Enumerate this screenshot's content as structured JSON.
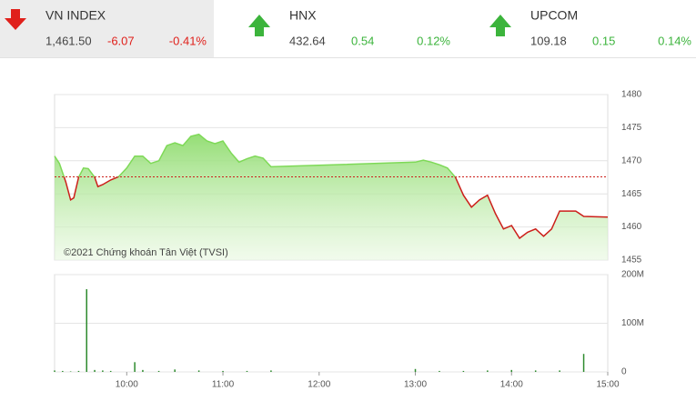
{
  "header": {
    "indices": [
      {
        "name": "VN INDEX",
        "value": "1,461.50",
        "change": "-6.07",
        "percent": "-0.41%",
        "direction": "down"
      },
      {
        "name": "HNX",
        "value": "432.64",
        "change": "0.54",
        "percent": "0.12%",
        "direction": "up"
      },
      {
        "name": "UPCOM",
        "value": "109.18",
        "change": "0.15",
        "percent": "0.14%",
        "direction": "up"
      }
    ]
  },
  "chart_data": [
    {
      "type": "line",
      "annotation": "©2021 Chứng khoán Tân Việt (TVSI)",
      "x": [
        "09:15",
        "09:18",
        "09:22",
        "09:25",
        "09:27",
        "09:30",
        "09:33",
        "09:36",
        "09:40",
        "09:42",
        "09:45",
        "09:50",
        "09:55",
        "10:00",
        "10:05",
        "10:10",
        "10:15",
        "10:20",
        "10:25",
        "10:30",
        "10:35",
        "10:40",
        "10:45",
        "10:50",
        "10:55",
        "11:00",
        "11:05",
        "11:10",
        "11:15",
        "11:20",
        "11:25",
        "11:30",
        "13:00",
        "13:05",
        "13:10",
        "13:15",
        "13:20",
        "13:25",
        "13:30",
        "13:35",
        "13:40",
        "13:45",
        "13:50",
        "13:55",
        "14:00",
        "14:05",
        "14:10",
        "14:15",
        "14:20",
        "14:25",
        "14:30",
        "14:35",
        "14:40",
        "14:45",
        "15:00"
      ],
      "series": [
        {
          "name": "VN INDEX",
          "values": [
            1470.7,
            1469.6,
            1466.8,
            1464.1,
            1464.4,
            1467.5,
            1468.9,
            1468.8,
            1467.5,
            1466.1,
            1466.4,
            1467.1,
            1467.6,
            1468.9,
            1470.7,
            1470.7,
            1469.6,
            1470.0,
            1472.3,
            1472.7,
            1472.3,
            1473.7,
            1474.0,
            1473.0,
            1472.6,
            1473.0,
            1471.2,
            1469.8,
            1470.3,
            1470.7,
            1470.4,
            1469.1,
            1469.8,
            1470.1,
            1469.8,
            1469.4,
            1468.9,
            1467.5,
            1464.8,
            1463.0,
            1464.1,
            1464.8,
            1462.0,
            1459.7,
            1460.2,
            1458.3,
            1459.2,
            1459.7,
            1458.6,
            1459.7,
            1462.4,
            1462.4,
            1462.4,
            1461.6,
            1461.5
          ]
        }
      ],
      "reference": 1467.57,
      "up_color": "#7ed957",
      "down_color": "#cc1f1a",
      "xlim": [
        "09:15",
        "15:00"
      ],
      "ylim": [
        1455,
        1480
      ],
      "yticks": [
        1455,
        1460,
        1465,
        1470,
        1475,
        1480
      ],
      "grid": true
    },
    {
      "type": "bar",
      "color": "#2e8b2e",
      "x": [
        "09:15",
        "09:20",
        "09:25",
        "09:30",
        "09:35",
        "09:40",
        "09:45",
        "09:50",
        "10:05",
        "10:10",
        "10:20",
        "10:30",
        "10:45",
        "11:00",
        "11:15",
        "11:30",
        "13:00",
        "13:15",
        "13:30",
        "13:45",
        "14:00",
        "14:15",
        "14:30",
        "14:45"
      ],
      "values": [
        3,
        2,
        1,
        2,
        170,
        4,
        3,
        2,
        20,
        4,
        2,
        5,
        3,
        2,
        2,
        3,
        6,
        2,
        2,
        3,
        4,
        3,
        3,
        37
      ],
      "xlim": [
        "09:15",
        "15:00"
      ],
      "xticks": [
        "10:00",
        "11:00",
        "12:00",
        "13:00",
        "14:00",
        "15:00"
      ],
      "ylim": [
        0,
        200
      ],
      "yticks": [
        0,
        {
          "value": 100,
          "label": "100M"
        },
        {
          "value": 200,
          "label": "200M"
        }
      ],
      "grid": true
    }
  ]
}
